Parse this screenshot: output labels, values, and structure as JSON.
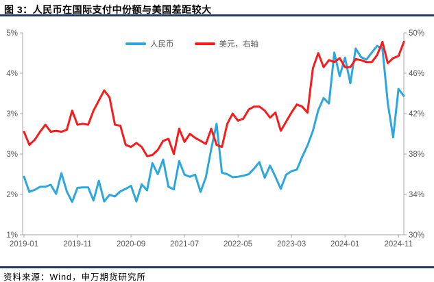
{
  "page": {
    "title": "图 3：人民币在国际支付中份额与美国差距较大",
    "source": "资料来源：Wind，申万期货研究所"
  },
  "colors": {
    "accent_rule": "#1F3864",
    "rmb_line": "#2CA7DE",
    "usd_line": "#F91A1B",
    "axis_line": "#A6A6A6",
    "tick_text": "#595959"
  },
  "chart_data": {
    "type": "line",
    "title": "人民币在国际支付中份额与美国差距较大",
    "grid": false,
    "legend": {
      "position": "top",
      "items": [
        "人民币",
        "美元，右轴"
      ]
    },
    "x_tick_labels": [
      "2019-01",
      "2019-11",
      "2020-09",
      "2021-07",
      "2022-05",
      "2023-03",
      "2024-01",
      "2024-11"
    ],
    "x_months": [
      "2019-01",
      "2019-02",
      "2019-03",
      "2019-04",
      "2019-05",
      "2019-06",
      "2019-07",
      "2019-08",
      "2019-09",
      "2019-10",
      "2019-11",
      "2019-12",
      "2020-01",
      "2020-02",
      "2020-03",
      "2020-04",
      "2020-05",
      "2020-06",
      "2020-07",
      "2020-08",
      "2020-09",
      "2020-10",
      "2020-11",
      "2020-12",
      "2021-01",
      "2021-02",
      "2021-03",
      "2021-04",
      "2021-05",
      "2021-06",
      "2021-07",
      "2021-08",
      "2021-09",
      "2021-10",
      "2021-11",
      "2021-12",
      "2022-01",
      "2022-02",
      "2022-03",
      "2022-04",
      "2022-05",
      "2022-06",
      "2022-07",
      "2022-08",
      "2022-09",
      "2022-10",
      "2022-11",
      "2022-12",
      "2023-01",
      "2023-02",
      "2023-03",
      "2023-04",
      "2023-05",
      "2023-06",
      "2023-07",
      "2023-08",
      "2023-09",
      "2023-10",
      "2023-11",
      "2023-12",
      "2024-01",
      "2024-02",
      "2024-03",
      "2024-04",
      "2024-05",
      "2024-06",
      "2024-07",
      "2024-08",
      "2024-09",
      "2024-10",
      "2024-11",
      "2024-12"
    ],
    "left_axis": {
      "min": 1,
      "max": 5,
      "unit": "%",
      "tick_labels": [
        "5%",
        "4%",
        "3%",
        "3%",
        "2%",
        "1%"
      ]
    },
    "right_axis": {
      "min": 30,
      "max": 50,
      "unit": "%",
      "tick_labels": [
        "50%",
        "46%",
        "42%",
        "38%",
        "34%",
        "30%"
      ]
    },
    "series": [
      {
        "name": "人民币",
        "axis": "left",
        "color_key": "rmb_line",
        "values": [
          2.15,
          1.85,
          1.89,
          1.95,
          1.95,
          1.99,
          1.81,
          2.22,
          1.86,
          1.65,
          1.93,
          1.94,
          1.94,
          1.68,
          2.07,
          1.66,
          1.79,
          1.76,
          1.86,
          1.91,
          1.97,
          1.66,
          2.0,
          1.88,
          2.42,
          2.2,
          2.49,
          1.95,
          1.9,
          2.46,
          2.19,
          2.15,
          2.19,
          1.85,
          2.14,
          2.7,
          3.2,
          2.23,
          2.2,
          2.14,
          2.15,
          2.17,
          2.2,
          2.31,
          2.44,
          2.13,
          2.37,
          2.15,
          1.91,
          2.19,
          2.26,
          2.29,
          2.54,
          2.77,
          3.06,
          3.47,
          3.71,
          3.6,
          4.61,
          4.14,
          4.51,
          4.0,
          4.69,
          4.52,
          4.47,
          4.61,
          4.74,
          4.69,
          3.61,
          2.93,
          3.89,
          3.75
        ]
      },
      {
        "name": "美元，右轴",
        "axis": "right",
        "color_key": "usd_line",
        "values": [
          40.2,
          38.9,
          39.4,
          40.2,
          40.9,
          40.2,
          40.3,
          40.2,
          40.4,
          42.3,
          40.9,
          41.0,
          40.9,
          42.3,
          43.3,
          44.3,
          43.6,
          40.9,
          40.8,
          38.9,
          38.7,
          39.1,
          38.7,
          37.8,
          37.9,
          38.4,
          39.3,
          39.5,
          38.0,
          40.5,
          39.2,
          40.0,
          39.6,
          39.3,
          39.0,
          40.5,
          38.9,
          38.7,
          41.0,
          42.0,
          41.3,
          41.5,
          42.4,
          42.7,
          42.7,
          42.3,
          41.6,
          42.1,
          40.3,
          41.2,
          42.1,
          42.9,
          42.7,
          42.1,
          46.5,
          48.0,
          46.6,
          47.3,
          47.1,
          47.5,
          46.6,
          46.6,
          47.4,
          47.3,
          47.1,
          47.1,
          47.8,
          49.1,
          47.0,
          47.5,
          47.7,
          49.1
        ]
      }
    ]
  }
}
